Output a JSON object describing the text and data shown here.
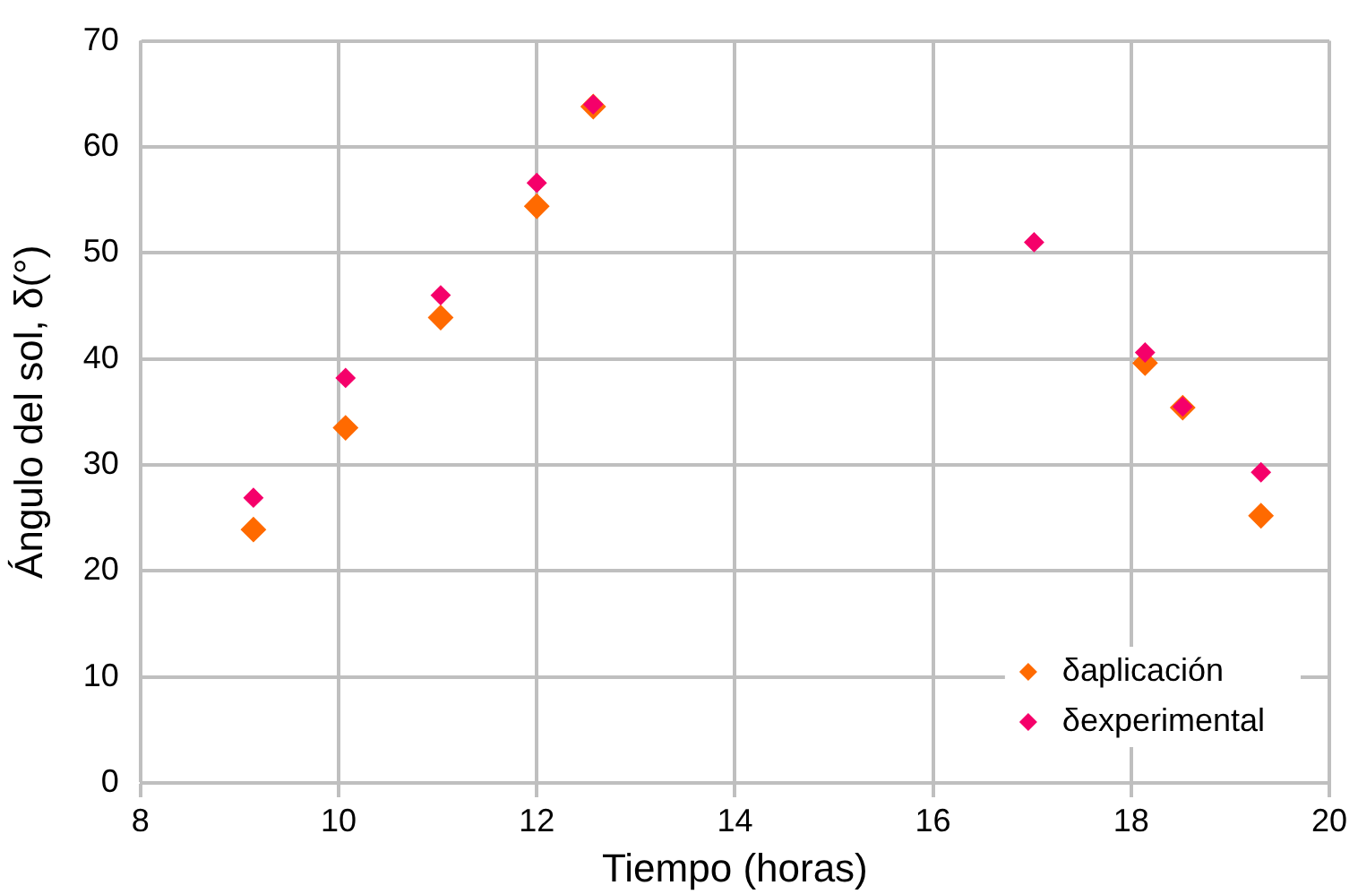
{
  "chart_data": {
    "type": "scatter",
    "xlabel": "Tiempo (horas)",
    "ylabel": "Ángulo del sol, δ(°)",
    "x": [
      9.14,
      10.07,
      11.03,
      12.0,
      12.57,
      17.02,
      18.14,
      18.52,
      19.31
    ],
    "series": [
      {
        "name": "δaplicación",
        "color": "#ff6a00",
        "values": [
          23.9,
          33.5,
          43.9,
          54.4,
          63.8,
          null,
          39.6,
          35.4,
          25.2
        ]
      },
      {
        "name": "δexperimental",
        "color": "#f5006a",
        "values": [
          26.9,
          38.2,
          46.0,
          56.6,
          64.0,
          51.0,
          40.6,
          35.5,
          29.3
        ]
      }
    ],
    "xlim": [
      8,
      20
    ],
    "xticks": [
      8,
      10,
      12,
      14,
      16,
      18,
      20
    ],
    "ylim": [
      0,
      70
    ],
    "yticks": [
      0,
      10,
      20,
      30,
      40,
      50,
      60,
      70
    ],
    "grid": true,
    "legend": "bottom right",
    "marker": "diamond"
  }
}
